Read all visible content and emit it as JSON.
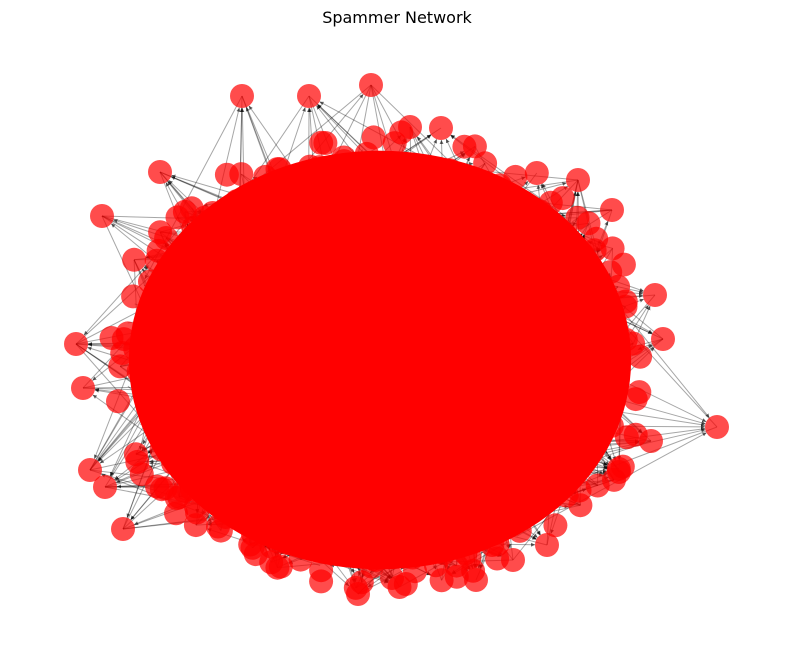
{
  "figure": {
    "title": "Spammer Network"
  },
  "graph": {
    "type": "directed-network",
    "node_color": "#ff0000",
    "node_opacity": 0.7,
    "edge_color": "#000000",
    "edge_opacity": 0.35,
    "arrowheads": true
  }
}
